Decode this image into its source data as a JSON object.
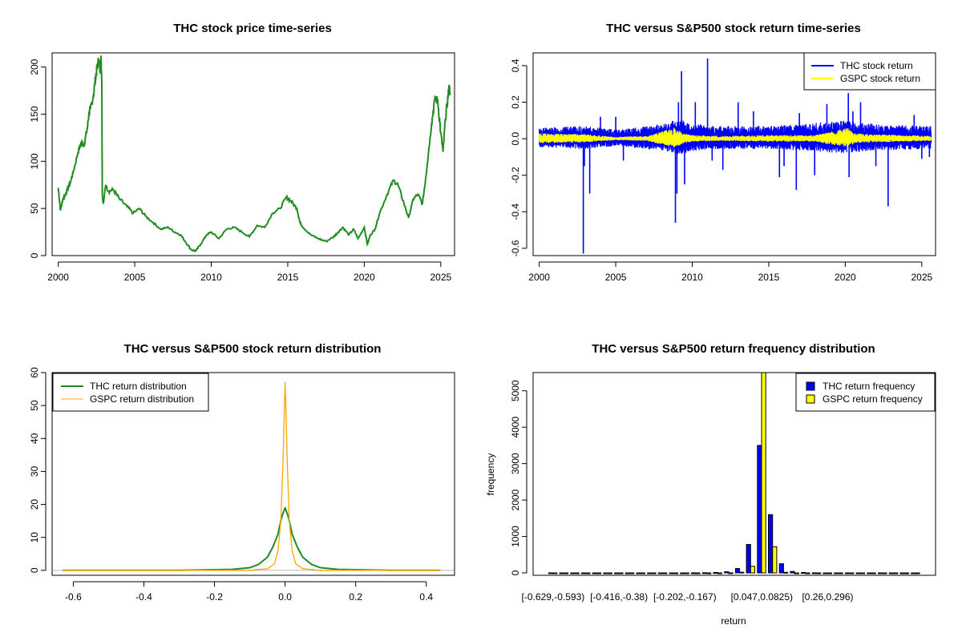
{
  "chart_data": [
    {
      "type": "line",
      "title": "THC stock price time-series",
      "xlabel": "",
      "ylabel": "",
      "xlim": [
        1999.6,
        2025.9
      ],
      "ylim": [
        0,
        215
      ],
      "x_ticks": [
        "2000",
        "2005",
        "2010",
        "2015",
        "2020",
        "2025"
      ],
      "y_ticks": [
        "0",
        "50",
        "100",
        "150",
        "200"
      ],
      "series": [
        {
          "color": "#228B22",
          "points": [
            [
              2000.0,
              72
            ],
            [
              2000.15,
              48
            ],
            [
              2000.3,
              60
            ],
            [
              2000.5,
              66
            ],
            [
              2000.8,
              78
            ],
            [
              2001.0,
              90
            ],
            [
              2001.3,
              110
            ],
            [
              2001.5,
              120
            ],
            [
              2001.7,
              118
            ],
            [
              2001.9,
              135
            ],
            [
              2002.0,
              150
            ],
            [
              2002.1,
              155
            ],
            [
              2002.3,
              170
            ],
            [
              2002.45,
              190
            ],
            [
              2002.55,
              200
            ],
            [
              2002.65,
              208
            ],
            [
              2002.75,
              195
            ],
            [
              2002.8,
              210
            ],
            [
              2002.85,
              185
            ],
            [
              2002.88,
              65
            ],
            [
              2002.95,
              55
            ],
            [
              2003.1,
              75
            ],
            [
              2003.3,
              68
            ],
            [
              2003.6,
              70
            ],
            [
              2004.0,
              60
            ],
            [
              2004.5,
              52
            ],
            [
              2004.9,
              45
            ],
            [
              2005.3,
              50
            ],
            [
              2005.7,
              42
            ],
            [
              2006.2,
              35
            ],
            [
              2006.7,
              28
            ],
            [
              2007.2,
              30
            ],
            [
              2007.6,
              25
            ],
            [
              2008.0,
              22
            ],
            [
              2008.3,
              15
            ],
            [
              2008.7,
              6
            ],
            [
              2009.0,
              5
            ],
            [
              2009.3,
              12
            ],
            [
              2009.7,
              22
            ],
            [
              2010.0,
              25
            ],
            [
              2010.5,
              18
            ],
            [
              2011.0,
              28
            ],
            [
              2011.5,
              30
            ],
            [
              2012.0,
              25
            ],
            [
              2012.5,
              20
            ],
            [
              2013.0,
              32
            ],
            [
              2013.5,
              30
            ],
            [
              2014.0,
              45
            ],
            [
              2014.5,
              50
            ],
            [
              2014.9,
              62
            ],
            [
              2015.2,
              58
            ],
            [
              2015.6,
              50
            ],
            [
              2015.8,
              35
            ],
            [
              2016.0,
              30
            ],
            [
              2016.5,
              22
            ],
            [
              2017.0,
              18
            ],
            [
              2017.5,
              15
            ],
            [
              2018.0,
              20
            ],
            [
              2018.3,
              25
            ],
            [
              2018.6,
              30
            ],
            [
              2019.0,
              22
            ],
            [
              2019.3,
              28
            ],
            [
              2019.6,
              18
            ],
            [
              2020.0,
              30
            ],
            [
              2020.2,
              12
            ],
            [
              2020.4,
              22
            ],
            [
              2020.7,
              28
            ],
            [
              2021.0,
              45
            ],
            [
              2021.5,
              65
            ],
            [
              2021.9,
              80
            ],
            [
              2022.2,
              75
            ],
            [
              2022.6,
              55
            ],
            [
              2022.9,
              40
            ],
            [
              2023.2,
              60
            ],
            [
              2023.5,
              65
            ],
            [
              2023.8,
              55
            ],
            [
              2024.0,
              80
            ],
            [
              2024.2,
              110
            ],
            [
              2024.4,
              140
            ],
            [
              2024.6,
              165
            ],
            [
              2024.8,
              165
            ],
            [
              2025.0,
              130
            ],
            [
              2025.15,
              110
            ],
            [
              2025.3,
              145
            ],
            [
              2025.45,
              165
            ],
            [
              2025.55,
              180
            ],
            [
              2025.6,
              170
            ]
          ]
        }
      ]
    },
    {
      "type": "line",
      "title": "THC versus S&P500 stock return time-series",
      "xlabel": "",
      "ylabel": "",
      "xlim": [
        1999.6,
        2025.9
      ],
      "ylim": [
        -0.64,
        0.47
      ],
      "x_ticks": [
        "2000",
        "2005",
        "2010",
        "2015",
        "2020",
        "2025"
      ],
      "y_ticks": [
        "-0.6",
        "-0.4",
        "-0.2",
        "0.0",
        "0.2",
        "0.4"
      ],
      "legend_position": "top-right",
      "series": [
        {
          "name": "THC stock return",
          "color": "#0000FF",
          "band": [
            [
              2000,
              0.06
            ],
            [
              2003,
              0.07
            ],
            [
              2005,
              0.05
            ],
            [
              2008,
              0.08
            ],
            [
              2009,
              0.11
            ],
            [
              2011,
              0.07
            ],
            [
              2015,
              0.07
            ],
            [
              2017,
              0.08
            ],
            [
              2020,
              0.1
            ],
            [
              2022,
              0.08
            ],
            [
              2025.6,
              0.07
            ]
          ],
          "spikes": [
            [
              2002.88,
              -0.629
            ],
            [
              2002.95,
              -0.15
            ],
            [
              2003.3,
              -0.3
            ],
            [
              2004.0,
              0.12
            ],
            [
              2005.0,
              0.12
            ],
            [
              2005.5,
              -0.12
            ],
            [
              2008.9,
              -0.46
            ],
            [
              2009.0,
              -0.3
            ],
            [
              2009.3,
              0.37
            ],
            [
              2009.1,
              0.2
            ],
            [
              2009.5,
              -0.25
            ],
            [
              2010.2,
              0.2
            ],
            [
              2011.0,
              0.44
            ],
            [
              2011.3,
              -0.12
            ],
            [
              2012.0,
              -0.17
            ],
            [
              2013.0,
              0.2
            ],
            [
              2014.0,
              0.15
            ],
            [
              2015.7,
              -0.21
            ],
            [
              2016.0,
              -0.15
            ],
            [
              2016.8,
              -0.28
            ],
            [
              2017.0,
              0.14
            ],
            [
              2018.0,
              -0.2
            ],
            [
              2018.8,
              0.19
            ],
            [
              2020.2,
              0.25
            ],
            [
              2020.25,
              -0.21
            ],
            [
              2020.5,
              0.15
            ],
            [
              2021.0,
              0.2
            ],
            [
              2022.0,
              -0.15
            ],
            [
              2022.8,
              -0.37
            ],
            [
              2024.5,
              0.13
            ],
            [
              2025.0,
              -0.11
            ],
            [
              2025.5,
              -0.1
            ]
          ]
        },
        {
          "name": "GSPC stock return",
          "color": "#FFFF00",
          "band": [
            [
              2000,
              0.03
            ],
            [
              2003,
              0.025
            ],
            [
              2005,
              0.01
            ],
            [
              2007,
              0.015
            ],
            [
              2008.8,
              0.06
            ],
            [
              2009.5,
              0.03
            ],
            [
              2010,
              0.02
            ],
            [
              2012,
              0.015
            ],
            [
              2015,
              0.02
            ],
            [
              2018,
              0.02
            ],
            [
              2020.2,
              0.06
            ],
            [
              2020.6,
              0.03
            ],
            [
              2022,
              0.025
            ],
            [
              2025.6,
              0.015
            ]
          ]
        }
      ]
    },
    {
      "type": "line",
      "title": "THC versus S&P500 stock return distribution",
      "xlabel": "",
      "ylabel": "",
      "xlim": [
        -0.66,
        0.48
      ],
      "ylim": [
        -1.5,
        60
      ],
      "x_ticks": [
        "-0.6",
        "-0.4",
        "-0.2",
        "0.0",
        "0.2",
        "0.4"
      ],
      "y_ticks": [
        "0",
        "10",
        "20",
        "30",
        "40",
        "50",
        "60"
      ],
      "legend_position": "top-left",
      "series": [
        {
          "name": "THC return distribution",
          "color": "#228B22",
          "points": [
            [
              -0.63,
              0
            ],
            [
              -0.3,
              0
            ],
            [
              -0.15,
              0.3
            ],
            [
              -0.1,
              0.8
            ],
            [
              -0.075,
              1.8
            ],
            [
              -0.05,
              4
            ],
            [
              -0.035,
              7
            ],
            [
              -0.02,
              11
            ],
            [
              -0.01,
              16
            ],
            [
              0.0,
              19
            ],
            [
              0.01,
              16
            ],
            [
              0.02,
              11
            ],
            [
              0.035,
              7
            ],
            [
              0.05,
              4
            ],
            [
              0.075,
              1.8
            ],
            [
              0.1,
              0.8
            ],
            [
              0.15,
              0.3
            ],
            [
              0.3,
              0
            ],
            [
              0.44,
              0
            ]
          ]
        },
        {
          "name": "GSPC return distribution",
          "color": "#FFA500",
          "points": [
            [
              -0.63,
              0
            ],
            [
              -0.1,
              0
            ],
            [
              -0.05,
              0.5
            ],
            [
              -0.03,
              2
            ],
            [
              -0.02,
              6
            ],
            [
              -0.012,
              15
            ],
            [
              -0.006,
              33
            ],
            [
              -0.002,
              50
            ],
            [
              0.0,
              57
            ],
            [
              0.002,
              50
            ],
            [
              0.006,
              33
            ],
            [
              0.012,
              15
            ],
            [
              0.02,
              6
            ],
            [
              0.03,
              2
            ],
            [
              0.05,
              0.5
            ],
            [
              0.1,
              0
            ],
            [
              0.44,
              0
            ]
          ]
        }
      ]
    },
    {
      "type": "bar",
      "title": "THC versus S&P500 return frequency distribution",
      "xlabel": "return",
      "ylabel": "frequency",
      "ylim": [
        0,
        5500
      ],
      "y_ticks": [
        "0",
        "1000",
        "2000",
        "3000",
        "4000",
        "5000"
      ],
      "x_tick_labels": [
        "[-0.629,-0.593)",
        "[-0.416,-0.38)",
        "[-0.202,-0.167)",
        "[0.047,0.0825)",
        "[0.26,0.296)"
      ],
      "legend_position": "top-right",
      "series": [
        {
          "name": "THC return frequency",
          "color": "#0000FF",
          "values": [
            2,
            0,
            0,
            0,
            0,
            0,
            0,
            1,
            0,
            0,
            0,
            0,
            1,
            2,
            5,
            10,
            30,
            120,
            780,
            3500,
            1600,
            250,
            40,
            10,
            3,
            1,
            1,
            0,
            0,
            0,
            0,
            0,
            0,
            1
          ]
        },
        {
          "name": "GSPC return frequency",
          "color": "#FFFF00",
          "values": [
            0,
            0,
            0,
            0,
            0,
            0,
            0,
            0,
            0,
            0,
            0,
            0,
            0,
            0,
            0,
            0,
            2,
            20,
            180,
            5600,
            720,
            15,
            1,
            0,
            0,
            0,
            0,
            0,
            0,
            0,
            0,
            0,
            0,
            0
          ]
        }
      ]
    }
  ]
}
